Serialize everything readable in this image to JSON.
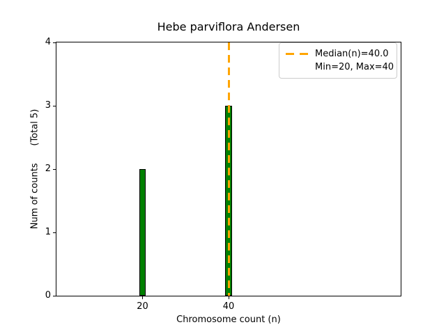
{
  "chart_data": {
    "type": "bar",
    "title": "Hebe parviflora Andersen",
    "xlabel": "Chromosome count (n)",
    "ylabel": "Num of counts      (Total 5)",
    "x": [
      20,
      40
    ],
    "values": [
      2,
      3
    ],
    "total_counts": 5,
    "xlim": [
      0,
      80
    ],
    "ylim": [
      0,
      4
    ],
    "xticks": [
      20,
      40
    ],
    "yticks": [
      0,
      1,
      2,
      3,
      4
    ],
    "bar_width_units": 1.5,
    "bar_color": "#008000",
    "bar_edge_color": "#000000",
    "median_line": {
      "x": 40,
      "value_label": "40.0",
      "color": "#FFA500",
      "style": "dashed"
    },
    "min": 20,
    "max": 40,
    "grid": false,
    "legend": {
      "position": "upper right",
      "items": [
        {
          "label": "Median(n)=40.0",
          "marker": "dashed-line",
          "color": "#FFA500"
        },
        {
          "label": "Min=20, Max=40",
          "marker": "none",
          "color": ""
        }
      ]
    }
  }
}
